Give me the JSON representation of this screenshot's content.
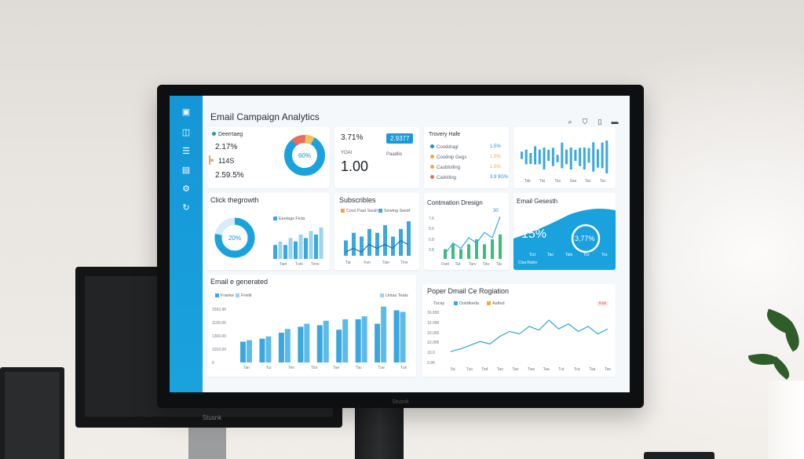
{
  "app": {
    "title": "Email Campaign Analytics",
    "monitor_brand": "Stusnk",
    "background_monitor_brand": "Stusnk"
  },
  "sidebar": {
    "icons": [
      "logo-icon",
      "inbox-icon",
      "list-icon",
      "image-icon",
      "settings-icon",
      "share-icon"
    ]
  },
  "top_icons": [
    "search-icon",
    "lock-icon",
    "document-icon",
    "minimize-icon"
  ],
  "cards": {
    "delivery": {
      "title": "Deerrtaeg",
      "stats": [
        {
          "label": "2.17%",
          "prefix": "",
          "color": "#1596d6"
        },
        {
          "label": "114S",
          "prefix": "w",
          "color": "#f2a93b"
        },
        {
          "label": "2.59.5%",
          "prefix": "",
          "color": "#e96b5c"
        }
      ],
      "donut_label": "60%",
      "donut_segments": [
        {
          "value": 70,
          "color": "#1aa2de"
        },
        {
          "value": 10,
          "color": "#e96b5c"
        },
        {
          "value": 8,
          "color": "#f2c24b"
        },
        {
          "value": 12,
          "color": "#1aa2de"
        }
      ]
    },
    "rate": {
      "value_top": "3.71%",
      "badge": "2.9377",
      "sublabel": "YOAI",
      "value_big": "1.00",
      "caption": "Paadlio"
    },
    "trend": {
      "title": "Trovery Hafe",
      "rows": [
        {
          "label": "Cooddragl",
          "value": "1.5%",
          "color": "#1596d6",
          "value_color": "#1596d6"
        },
        {
          "label": "Coodnip Gegs",
          "value": "1.5%",
          "color": "#f2a93b",
          "value_color": "#f2a93b"
        },
        {
          "label": "Caubtolling",
          "value": "1.5%",
          "color": "#f2a93b",
          "value_color": "#f2a93b"
        },
        {
          "label": "Cadstling",
          "value": "3.9 9G%",
          "color": "#e96b5c",
          "value_color": "#1596d6"
        }
      ]
    },
    "mini_bars": {
      "values": [
        2,
        4,
        3,
        5,
        4,
        6,
        3,
        5,
        2,
        7,
        4,
        6,
        3,
        5,
        6,
        4,
        8,
        5,
        7,
        9
      ],
      "x_labels": [
        "Tak",
        "Tat",
        "Tav",
        "Sas",
        "Tas",
        "Tac"
      ]
    },
    "click_growth": {
      "title": "Click thegrowth",
      "donut_label": "20%",
      "donut_value": 78,
      "legend": "Eeelags Ficta",
      "bars": [
        4,
        5,
        4,
        6,
        5,
        7,
        6,
        8,
        7,
        9
      ],
      "x_labels": [
        "Taet",
        "Turk",
        "Tone"
      ]
    },
    "subscribes": {
      "title": "Subscribles",
      "legend_a": "Coss Past Swall",
      "legend_b": "Sewing Swotf",
      "bars": [
        4,
        6,
        5,
        7,
        6,
        8,
        5,
        7,
        9
      ],
      "line": [
        3,
        4,
        3,
        5,
        4,
        5,
        4,
        6,
        5
      ],
      "x_labels": [
        "Tat",
        "Fun",
        "Tian",
        "Tine"
      ]
    },
    "conversion": {
      "title": "Contmation Dresign",
      "badge_value": "30",
      "y_labels": [
        "7.6",
        "5.6",
        "5.8",
        "3.8"
      ],
      "bars": [
        2,
        3,
        2,
        3,
        4,
        3,
        4,
        5
      ],
      "line": [
        1,
        3,
        2,
        4,
        3,
        5,
        4,
        8
      ],
      "x_labels": [
        "Faet",
        "Tat",
        "Tarv",
        "Tdo",
        "Tac"
      ]
    },
    "email_growth": {
      "title": "Email Gesesth",
      "big_value": "15%",
      "ring_value": "3,77%",
      "x_labels": [
        "Tcd",
        "Tao",
        "Tats",
        "Tcs",
        "Tcs"
      ],
      "caption": "Cisa Ralov"
    },
    "emails_generated": {
      "title": "Email e generated",
      "legend_a": "Franke",
      "legend_b": "Freitil",
      "legend_c": "Untas Teals",
      "y_labels": [
        "1593.95",
        "1100.00",
        "1300.00",
        "1010.00",
        "0"
      ],
      "bars": [
        {
          "a": 28,
          "b": 30
        },
        {
          "a": 32,
          "b": 35
        },
        {
          "a": 40,
          "b": 45
        },
        {
          "a": 48,
          "b": 52
        },
        {
          "a": 50,
          "b": 56
        },
        {
          "a": 44,
          "b": 58
        },
        {
          "a": 58,
          "b": 62
        },
        {
          "a": 52,
          "b": 75
        },
        {
          "a": 70,
          "b": 68
        }
      ],
      "x_labels": [
        "Tan",
        "Tur",
        "Ten",
        "Ttor",
        "Tae",
        "Tac",
        "Tue",
        "Tun"
      ]
    },
    "email_registration": {
      "title": "Poper Dmail Ce Rogiation",
      "legend_a": "Tocay",
      "legend_b": "Dotdtkeda",
      "legend_c": "Aalted",
      "pill": "Kiel",
      "y_labels": [
        "16.650",
        "15.000",
        "10.005",
        "10.005",
        "10.0",
        "0.95"
      ],
      "line": [
        10,
        12,
        15,
        18,
        16,
        22,
        26,
        24,
        30,
        27,
        35,
        28,
        32,
        26,
        30,
        24,
        28
      ],
      "x_labels": [
        "5a",
        "Tuo",
        "Tod",
        "Tao",
        "Tao",
        "Twe",
        "Taa",
        "Tut",
        "Tca",
        "Taa",
        "Tae"
      ]
    }
  }
}
